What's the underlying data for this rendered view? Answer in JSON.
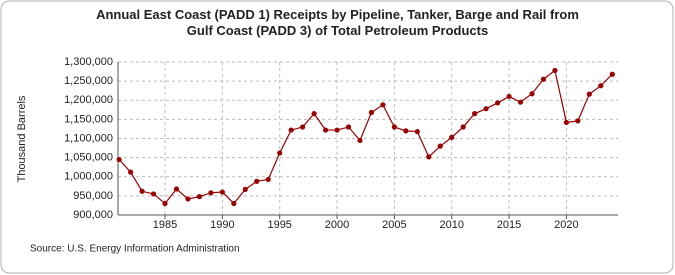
{
  "chart_data": {
    "type": "line",
    "title": "Annual East Coast (PADD 1) Receipts by Pipeline, Tanker, Barge and Rail from Gulf Coast (PADD 3) of Total Petroleum Products",
    "y_label": "Thousand Barrels",
    "source": "Source: U.S. Energy Information Administration",
    "color": "#990000",
    "x": [
      1981,
      1982,
      1983,
      1984,
      1985,
      1986,
      1987,
      1988,
      1989,
      1990,
      1991,
      1992,
      1993,
      1994,
      1995,
      1996,
      1997,
      1998,
      1999,
      2000,
      2001,
      2002,
      2003,
      2004,
      2005,
      2006,
      2007,
      2008,
      2009,
      2010,
      2011,
      2012,
      2013,
      2014,
      2015,
      2016,
      2017,
      2018,
      2019,
      2020,
      2021,
      2022,
      2023,
      2024
    ],
    "values": [
      1045000,
      1012000,
      962000,
      955000,
      930000,
      968000,
      942000,
      948000,
      958000,
      960000,
      930000,
      967000,
      988000,
      993000,
      1062000,
      1122000,
      1130000,
      1165000,
      1122000,
      1122000,
      1130000,
      1095000,
      1168000,
      1188000,
      1130000,
      1120000,
      1118000,
      1052000,
      1080000,
      1103000,
      1130000,
      1165000,
      1178000,
      1193000,
      1210000,
      1195000,
      1217000,
      1255000,
      1278000,
      1142000,
      1146000,
      1216000,
      1238000,
      1268000
    ],
    "xlim": [
      1980.9,
      2024.5
    ],
    "xticks": [
      1985,
      1990,
      1995,
      2000,
      2005,
      2010,
      2015,
      2020
    ],
    "ylim": [
      900000,
      1300000
    ],
    "yticks": [
      {
        "value": 900000,
        "label": "900,000"
      },
      {
        "value": 950000,
        "label": "950,000"
      },
      {
        "value": 1000000,
        "label": "1,000,000"
      },
      {
        "value": 1050000,
        "label": "1,050,000"
      },
      {
        "value": 1100000,
        "label": "1,100,000"
      },
      {
        "value": 1150000,
        "label": "1,150,000"
      },
      {
        "value": 1200000,
        "label": "1,200,000"
      },
      {
        "value": 1250000,
        "label": "1,250,000"
      },
      {
        "value": 1300000,
        "label": "1,300,000"
      }
    ],
    "grid": true
  }
}
